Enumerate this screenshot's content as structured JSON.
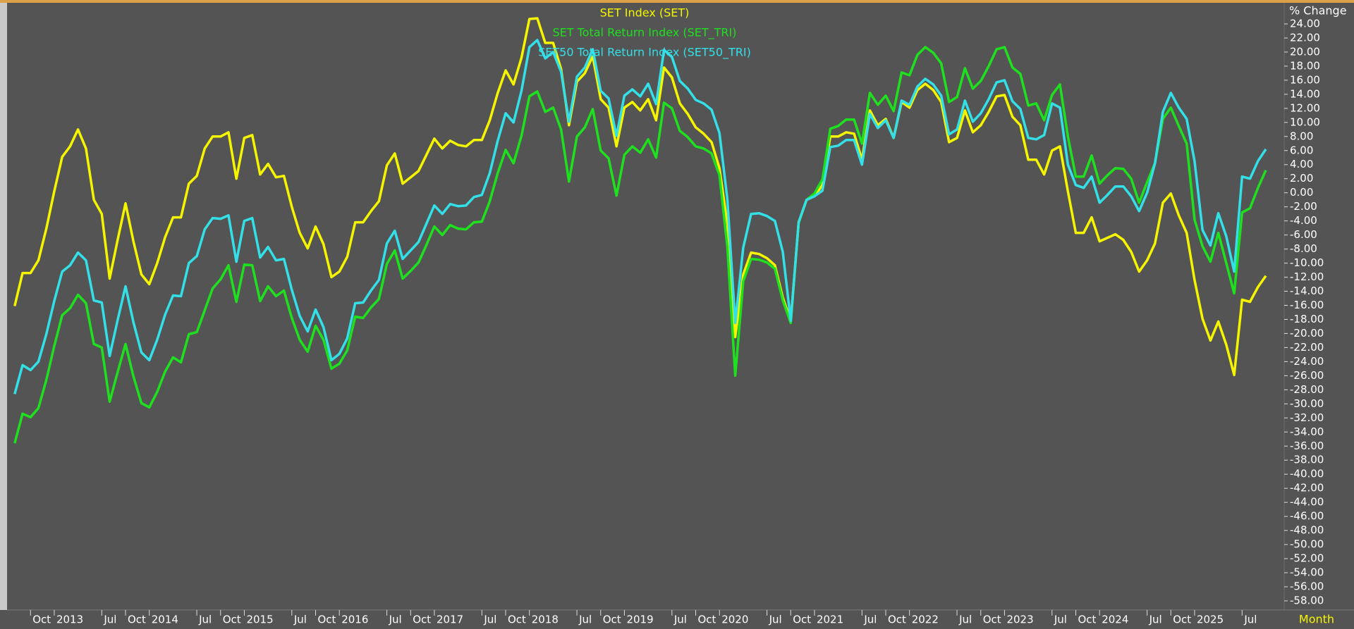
{
  "chart_data": {
    "type": "line",
    "y_label": "% Change",
    "x_label": "Month",
    "grid": false,
    "legend_position": "top",
    "ylim": [
      -59.3,
      26.8
    ],
    "yticks": [
      {
        "value": 24,
        "label": "24.00"
      },
      {
        "value": 22,
        "label": "22.00"
      },
      {
        "value": 20,
        "label": "20.00"
      },
      {
        "value": 18,
        "label": "18.00"
      },
      {
        "value": 16,
        "label": "16.00"
      },
      {
        "value": 14,
        "label": "14.00"
      },
      {
        "value": 12,
        "label": "12.00"
      },
      {
        "value": 10,
        "label": "10.00"
      },
      {
        "value": 8,
        "label": "8.00"
      },
      {
        "value": 6,
        "label": "6.00"
      },
      {
        "value": 4,
        "label": "4.00"
      },
      {
        "value": 2,
        "label": "2.00"
      },
      {
        "value": 0,
        "label": "0.00"
      },
      {
        "value": -2,
        "label": "-2.00"
      },
      {
        "value": -4,
        "label": "-4.00"
      },
      {
        "value": -6,
        "label": "-6.00"
      },
      {
        "value": -8,
        "label": "-8.00"
      },
      {
        "value": -10,
        "label": "-10.00"
      },
      {
        "value": -12,
        "label": "-12.00"
      },
      {
        "value": -14,
        "label": "-14.00"
      },
      {
        "value": -16,
        "label": "-16.00"
      },
      {
        "value": -18,
        "label": "-18.00"
      },
      {
        "value": -20,
        "label": "-20.00"
      },
      {
        "value": -22,
        "label": "-22.00"
      },
      {
        "value": -24,
        "label": "-24.00"
      },
      {
        "value": -26,
        "label": "-26.00"
      },
      {
        "value": -28,
        "label": "-28.00"
      },
      {
        "value": -30,
        "label": "-30.00"
      },
      {
        "value": -32,
        "label": "-32.00"
      },
      {
        "value": -34,
        "label": "-34.00"
      },
      {
        "value": -36,
        "label": "-36.00"
      },
      {
        "value": -38,
        "label": "-38.00"
      },
      {
        "value": -40,
        "label": "-40.00"
      },
      {
        "value": -42,
        "label": "-42.00"
      },
      {
        "value": -44,
        "label": "-44.00"
      },
      {
        "value": -46,
        "label": "-46.00"
      },
      {
        "value": -48,
        "label": "-48.00"
      },
      {
        "value": -50,
        "label": "-50.00"
      },
      {
        "value": -52,
        "label": "-52.00"
      },
      {
        "value": -54,
        "label": "-54.00"
      },
      {
        "value": -56,
        "label": "-56.00"
      },
      {
        "value": -58,
        "label": "-58.00"
      }
    ],
    "x": [
      "2012-08",
      "2012-09",
      "2012-10",
      "2012-11",
      "2012-12",
      "2013-01",
      "2013-02",
      "2013-03",
      "2013-04",
      "2013-05",
      "2013-06",
      "2013-07",
      "2013-08",
      "2013-09",
      "2013-10",
      "2013-11",
      "2013-12",
      "2014-01",
      "2014-02",
      "2014-03",
      "2014-04",
      "2014-05",
      "2014-06",
      "2014-07",
      "2014-08",
      "2014-09",
      "2014-10",
      "2014-11",
      "2014-12",
      "2015-01",
      "2015-02",
      "2015-03",
      "2015-04",
      "2015-05",
      "2015-06",
      "2015-07",
      "2015-08",
      "2015-09",
      "2015-10",
      "2015-11",
      "2015-12",
      "2016-01",
      "2016-02",
      "2016-03",
      "2016-04",
      "2016-05",
      "2016-06",
      "2016-07",
      "2016-08",
      "2016-09",
      "2016-10",
      "2016-11",
      "2016-12",
      "2017-01",
      "2017-02",
      "2017-03",
      "2017-04",
      "2017-05",
      "2017-06",
      "2017-07",
      "2017-08",
      "2017-09",
      "2017-10",
      "2017-11",
      "2017-12",
      "2018-01",
      "2018-02",
      "2018-03",
      "2018-04",
      "2018-05",
      "2018-06",
      "2018-07",
      "2018-08",
      "2018-09",
      "2018-10",
      "2018-11",
      "2018-12",
      "2019-01",
      "2019-02",
      "2019-03",
      "2019-04",
      "2019-05",
      "2019-06",
      "2019-07",
      "2019-08",
      "2019-09",
      "2019-10",
      "2019-11",
      "2019-12",
      "2020-01",
      "2020-02",
      "2020-03",
      "2020-04",
      "2020-05",
      "2020-06",
      "2020-07",
      "2020-08",
      "2020-09",
      "2020-10",
      "2020-11",
      "2020-12",
      "2021-01",
      "2021-02",
      "2021-03",
      "2021-04",
      "2021-05",
      "2021-06",
      "2021-07",
      "2021-08",
      "2021-09",
      "2021-10",
      "2021-11",
      "2021-12",
      "2022-01",
      "2022-02",
      "2022-03",
      "2022-04",
      "2022-05",
      "2022-06",
      "2022-07",
      "2022-08",
      "2022-09",
      "2022-10",
      "2022-11",
      "2022-12",
      "2023-01",
      "2023-02",
      "2023-03",
      "2023-04",
      "2023-05",
      "2023-06",
      "2023-07",
      "2023-08",
      "2023-09",
      "2023-10",
      "2023-11",
      "2023-12",
      "2024-01",
      "2024-02",
      "2024-03",
      "2024-04",
      "2024-05",
      "2024-06",
      "2024-07",
      "2024-08",
      "2024-09",
      "2024-10",
      "2024-11",
      "2024-12",
      "2025-01",
      "2025-02",
      "2025-03",
      "2025-04",
      "2025-05",
      "2025-06",
      "2025-07",
      "2025-08",
      "2025-09",
      "2025-10"
    ],
    "xticks": [
      {
        "value": "2012-10",
        "label": "Oct"
      },
      {
        "value": "2013-01",
        "label": "2013"
      },
      {
        "value": "2013-07",
        "label": "Jul"
      },
      {
        "value": "2013-10",
        "label": "Oct"
      },
      {
        "value": "2014-01",
        "label": "2014"
      },
      {
        "value": "2014-07",
        "label": "Jul"
      },
      {
        "value": "2014-10",
        "label": "Oct"
      },
      {
        "value": "2015-01",
        "label": "2015"
      },
      {
        "value": "2015-07",
        "label": "Jul"
      },
      {
        "value": "2015-10",
        "label": "Oct"
      },
      {
        "value": "2016-01",
        "label": "2016"
      },
      {
        "value": "2016-07",
        "label": "Jul"
      },
      {
        "value": "2016-10",
        "label": "Oct"
      },
      {
        "value": "2017-01",
        "label": "2017"
      },
      {
        "value": "2017-07",
        "label": "Jul"
      },
      {
        "value": "2017-10",
        "label": "Oct"
      },
      {
        "value": "2018-01",
        "label": "2018"
      },
      {
        "value": "2018-07",
        "label": "Jul"
      },
      {
        "value": "2018-10",
        "label": "Oct"
      },
      {
        "value": "2019-01",
        "label": "2019"
      },
      {
        "value": "2019-07",
        "label": "Jul"
      },
      {
        "value": "2019-10",
        "label": "Oct"
      },
      {
        "value": "2020-01",
        "label": "2020"
      },
      {
        "value": "2020-07",
        "label": "Jul"
      },
      {
        "value": "2020-10",
        "label": "Oct"
      },
      {
        "value": "2021-01",
        "label": "2021"
      },
      {
        "value": "2021-07",
        "label": "Jul"
      },
      {
        "value": "2021-10",
        "label": "Oct"
      },
      {
        "value": "2022-01",
        "label": "2022"
      },
      {
        "value": "2022-07",
        "label": "Jul"
      },
      {
        "value": "2022-10",
        "label": "Oct"
      },
      {
        "value": "2023-01",
        "label": "2023"
      },
      {
        "value": "2023-07",
        "label": "Jul"
      },
      {
        "value": "2023-10",
        "label": "Oct"
      },
      {
        "value": "2024-01",
        "label": "2024"
      },
      {
        "value": "2024-07",
        "label": "Jul"
      },
      {
        "value": "2024-10",
        "label": "Oct"
      },
      {
        "value": "2025-01",
        "label": "2025"
      },
      {
        "value": "2025-07",
        "label": "Jul"
      }
    ],
    "series": [
      {
        "name": "SET Index (SET)",
        "color": "#f5f500",
        "values": [
          -16.1,
          -11.4,
          -11.4,
          -9.6,
          -5.1,
          0.2,
          5.1,
          6.6,
          9.0,
          6.3,
          -1.0,
          -3.0,
          -12.2,
          -6.7,
          -1.5,
          -6.9,
          -11.6,
          -13.0,
          -10.0,
          -6.3,
          -3.5,
          -3.5,
          1.3,
          2.4,
          6.3,
          8.0,
          8.0,
          8.6,
          2.0,
          7.8,
          8.2,
          2.6,
          4.1,
          2.2,
          2.4,
          -2.0,
          -5.7,
          -7.9,
          -4.8,
          -7.3,
          -12.0,
          -11.2,
          -9.1,
          -4.2,
          -4.2,
          -2.6,
          -1.2,
          3.9,
          5.6,
          1.3,
          2.2,
          3.1,
          5.4,
          7.7,
          6.3,
          7.4,
          6.8,
          6.6,
          7.5,
          7.5,
          10.3,
          14.2,
          17.4,
          15.4,
          19.2,
          24.7,
          24.8,
          21.3,
          21.3,
          17.6,
          9.6,
          15.8,
          17.0,
          19.4,
          13.3,
          12.1,
          6.6,
          12.1,
          12.9,
          11.7,
          13.3,
          10.3,
          17.8,
          16.4,
          12.7,
          11.2,
          9.3,
          8.4,
          7.2,
          3.5,
          -4.4,
          -20.5,
          -11.6,
          -8.5,
          -8.7,
          -9.3,
          -10.3,
          -14.9,
          -18.2,
          -4.2,
          -1.0,
          -0.5,
          1.1,
          8.0,
          8.0,
          8.6,
          8.4,
          4.7,
          11.7,
          9.6,
          10.5,
          7.8,
          12.9,
          12.1,
          14.6,
          15.5,
          14.6,
          12.9,
          7.2,
          7.8,
          11.7,
          8.6,
          9.6,
          11.5,
          13.7,
          13.9,
          10.8,
          9.6,
          4.7,
          4.7,
          2.6,
          6.0,
          6.6,
          0.2,
          -5.7,
          -5.7,
          -3.5,
          -6.9,
          -6.4,
          -5.9,
          -6.7,
          -8.4,
          -11.2,
          -9.6,
          -7.2,
          -1.4,
          -0.1,
          -3.2,
          -5.7,
          -12.4,
          -17.9,
          -21.0,
          -18.3,
          -21.6,
          -25.9,
          -15.2,
          -15.5,
          -13.4,
          -11.8
        ]
      },
      {
        "name": "SET Total Return Index (SET_TRI)",
        "color": "#1ee01e",
        "values": [
          -35.6,
          -31.4,
          -31.9,
          -30.6,
          -26.6,
          -21.8,
          -17.4,
          -16.4,
          -14.5,
          -15.7,
          -21.5,
          -22.0,
          -29.7,
          -25.5,
          -21.5,
          -26.1,
          -29.9,
          -30.5,
          -28.3,
          -25.4,
          -23.4,
          -24.1,
          -20.1,
          -19.8,
          -16.7,
          -13.6,
          -12.3,
          -10.3,
          -15.5,
          -10.2,
          -10.3,
          -15.4,
          -13.3,
          -14.7,
          -13.9,
          -17.8,
          -20.9,
          -22.6,
          -18.9,
          -20.9,
          -25.0,
          -24.3,
          -22.4,
          -17.6,
          -17.8,
          -16.3,
          -15.1,
          -10.1,
          -8.2,
          -12.2,
          -11.1,
          -9.9,
          -7.4,
          -4.8,
          -6.0,
          -4.6,
          -5.1,
          -5.2,
          -4.2,
          -4.1,
          -1.2,
          2.8,
          6.1,
          4.2,
          8.1,
          13.7,
          14.4,
          11.5,
          12.1,
          9.0,
          1.6,
          8.0,
          9.3,
          11.9,
          6.0,
          4.9,
          -0.4,
          5.4,
          6.6,
          5.7,
          7.6,
          5.0,
          12.8,
          12.0,
          8.8,
          7.9,
          6.6,
          6.3,
          5.6,
          2.5,
          -7.7,
          -26.0,
          -12.6,
          -9.4,
          -9.5,
          -9.9,
          -10.8,
          -15.3,
          -18.5,
          -4.3,
          -1.0,
          -0.1,
          1.9,
          9.1,
          9.5,
          10.4,
          10.4,
          7.0,
          14.2,
          12.5,
          13.8,
          11.6,
          17.1,
          16.7,
          19.6,
          20.7,
          19.9,
          18.4,
          12.9,
          13.6,
          17.7,
          14.8,
          15.9,
          18.0,
          20.4,
          20.7,
          17.8,
          16.9,
          12.4,
          12.7,
          10.3,
          13.9,
          15.4,
          8.0,
          2.3,
          2.3,
          5.3,
          1.3,
          2.5,
          3.5,
          3.4,
          2.0,
          -1.4,
          1.5,
          4.2,
          10.5,
          12.1,
          9.5,
          7.0,
          -3.8,
          -7.6,
          -9.8,
          -5.7,
          -10.0,
          -14.3,
          -2.8,
          -2.2,
          0.7,
          3.2
        ]
      },
      {
        "name": "SET50 Total Return Index (SET50_TRI)",
        "color": "#33e0e8",
        "values": [
          -28.6,
          -24.5,
          -25.2,
          -24.0,
          -20.1,
          -15.4,
          -11.2,
          -10.3,
          -8.5,
          -9.6,
          -15.3,
          -15.6,
          -23.2,
          -18.1,
          -13.3,
          -18.4,
          -22.7,
          -23.8,
          -20.9,
          -17.3,
          -14.6,
          -14.7,
          -10.0,
          -9.0,
          -5.2,
          -3.6,
          -3.7,
          -3.2,
          -9.8,
          -4.0,
          -3.6,
          -9.2,
          -7.7,
          -9.6,
          -9.4,
          -13.8,
          -17.5,
          -19.7,
          -16.6,
          -19.1,
          -23.8,
          -22.9,
          -20.7,
          -15.7,
          -15.6,
          -13.9,
          -12.4,
          -7.2,
          -5.4,
          -9.4,
          -8.2,
          -7.0,
          -4.4,
          -1.8,
          -3.0,
          -1.6,
          -1.9,
          -1.8,
          -0.6,
          -0.3,
          2.8,
          7.4,
          11.3,
          10.0,
          14.5,
          20.7,
          21.7,
          19.1,
          20.0,
          17.2,
          10.1,
          16.5,
          17.8,
          20.4,
          14.5,
          13.4,
          8.1,
          13.8,
          14.7,
          13.7,
          15.5,
          12.6,
          20.3,
          19.3,
          15.9,
          14.8,
          13.2,
          12.7,
          11.8,
          8.5,
          -0.9,
          -18.5,
          -7.8,
          -3.0,
          -2.9,
          -3.3,
          -4.0,
          -8.4,
          -18.2,
          -4.2,
          -1.0,
          -0.5,
          0.3,
          6.5,
          6.7,
          7.5,
          7.5,
          4.0,
          11.2,
          9.2,
          10.3,
          7.8,
          13.1,
          12.5,
          15.1,
          16.2,
          15.4,
          13.8,
          8.3,
          9.0,
          13.1,
          10.1,
          11.3,
          13.3,
          15.7,
          16.0,
          13.0,
          11.9,
          7.8,
          7.6,
          8.2,
          12.7,
          12.1,
          4.0,
          1.1,
          0.7,
          2.3,
          -1.4,
          -0.3,
          0.9,
          0.9,
          -0.5,
          -2.6,
          0.0,
          4.2,
          11.5,
          14.2,
          12.1,
          10.5,
          4.5,
          -5.3,
          -7.5,
          -2.9,
          -6.2,
          -11.2,
          2.3,
          2.0,
          4.5,
          6.2
        ]
      }
    ]
  }
}
